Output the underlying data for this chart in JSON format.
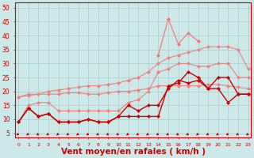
{
  "x": [
    0,
    1,
    2,
    3,
    4,
    5,
    6,
    7,
    8,
    9,
    10,
    11,
    12,
    13,
    14,
    15,
    16,
    17,
    18,
    19,
    20,
    21,
    22,
    23
  ],
  "line_pale1": [
    18,
    19,
    19,
    19,
    19,
    19.5,
    19.5,
    19,
    19,
    19.5,
    20,
    20,
    20.5,
    21,
    22,
    22,
    22,
    22,
    22,
    22.5,
    22.5,
    22,
    21.5,
    21
  ],
  "line_pale2": [
    9,
    15,
    16,
    16,
    13,
    13,
    13,
    13,
    13,
    13,
    13,
    16,
    17,
    20,
    27,
    28,
    30,
    30,
    29,
    29,
    30,
    30,
    25,
    25
  ],
  "line_pale3": [
    18,
    18.5,
    19,
    20,
    20.5,
    21,
    21.5,
    22,
    22,
    22.5,
    23,
    24,
    25,
    27,
    30,
    32,
    33,
    34,
    35,
    36,
    36,
    36,
    35,
    28
  ],
  "line_spike": [
    null,
    null,
    null,
    null,
    null,
    null,
    null,
    null,
    null,
    null,
    null,
    null,
    null,
    null,
    33,
    46,
    37,
    41,
    38,
    null,
    null,
    null,
    null,
    null
  ],
  "line_red1": [
    9,
    14,
    11,
    12,
    9,
    9,
    9,
    10,
    9,
    9,
    11,
    11,
    11,
    11,
    11,
    22,
    23,
    27,
    25,
    21,
    25,
    25,
    19,
    19
  ],
  "line_red2": [
    9,
    14,
    11,
    12,
    9,
    9,
    9,
    10,
    9,
    9,
    11,
    15,
    13,
    15,
    15,
    21,
    24,
    23,
    24,
    21,
    21,
    16,
    19,
    19
  ],
  "xlabel": "Vent moyen/en rafales ( km/h )",
  "yticks": [
    5,
    10,
    15,
    20,
    25,
    30,
    35,
    40,
    45,
    50
  ],
  "xlim": [
    -0.3,
    23.3
  ],
  "ylim": [
    3.5,
    52
  ],
  "bg": "#cce8e8",
  "grid_c": "#aacccc",
  "pale": "#f08080",
  "red": "#cc0000",
  "spike_c": "#ff7070"
}
